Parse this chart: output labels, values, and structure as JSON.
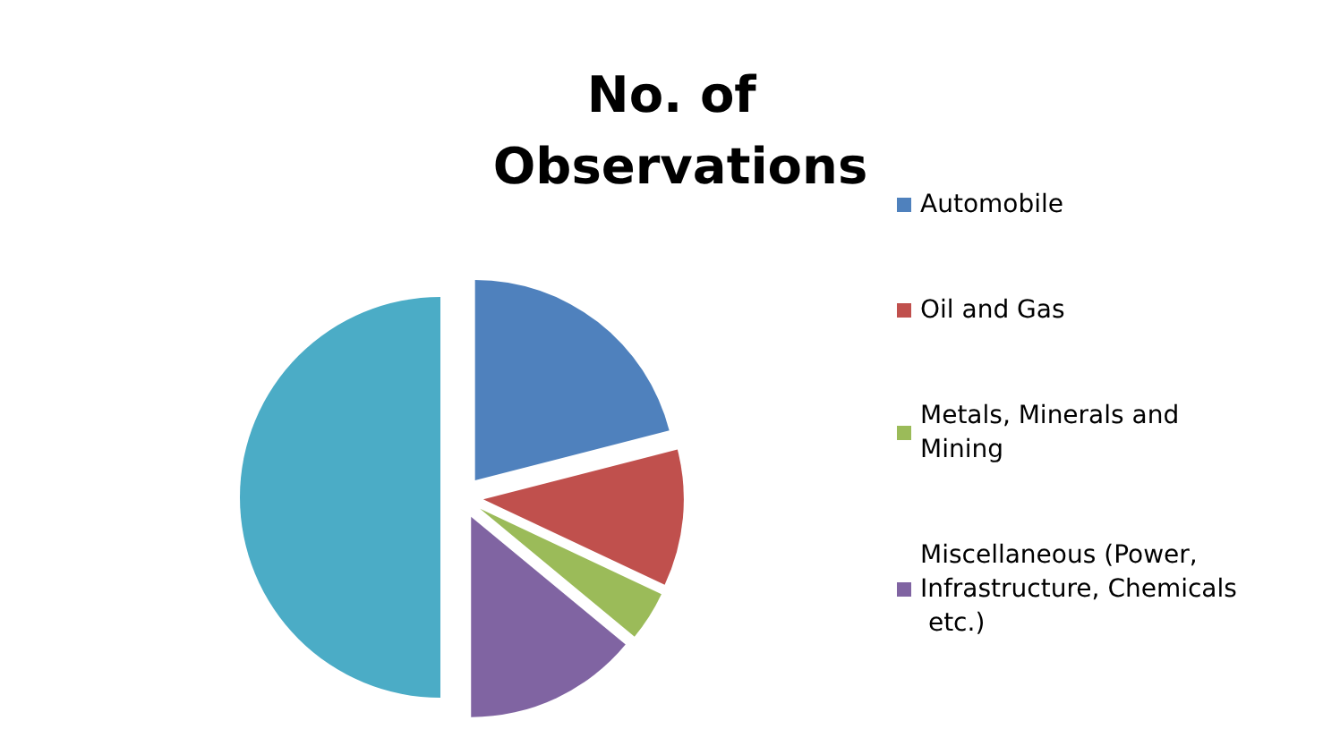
{
  "chart_data": {
    "type": "pie",
    "title": "No. of Observations",
    "categories": [
      "Automobile",
      "Oil and Gas",
      "Metals, Minerals and Mining",
      "Miscellaneous (Power, Infrastructure, Chemicals etc.)",
      null
    ],
    "values": [
      21,
      11,
      4,
      14,
      50
    ],
    "colors": [
      "#4f81bd",
      "#c0504d",
      "#9bbb59",
      "#8064a2",
      "#4bacc6"
    ],
    "legend": "right"
  }
}
